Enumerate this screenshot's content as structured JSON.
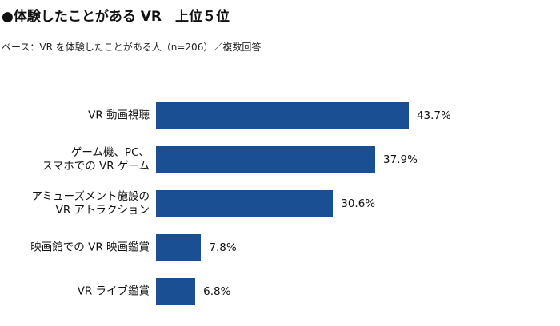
{
  "chart_data": {
    "type": "bar",
    "orientation": "horizontal",
    "title": "●体験したことがある VR　上位５位",
    "subtitle": "ベース：VR を体験したことがある人（n=206）／複数回答",
    "categories": [
      "VR 動画視聴",
      "ゲーム機、PC、\nスマホでの VR ゲーム",
      "アミューズメント施設の\nVR アトラクション",
      "映画館での VR 映画鑑賞",
      "VR ライブ鑑賞"
    ],
    "values": [
      43.7,
      37.9,
      30.6,
      7.8,
      6.8
    ],
    "value_labels": [
      "43.7%",
      "37.9%",
      "30.6%",
      "7.8%",
      "6.8%"
    ],
    "color": "#1b4f93"
  }
}
